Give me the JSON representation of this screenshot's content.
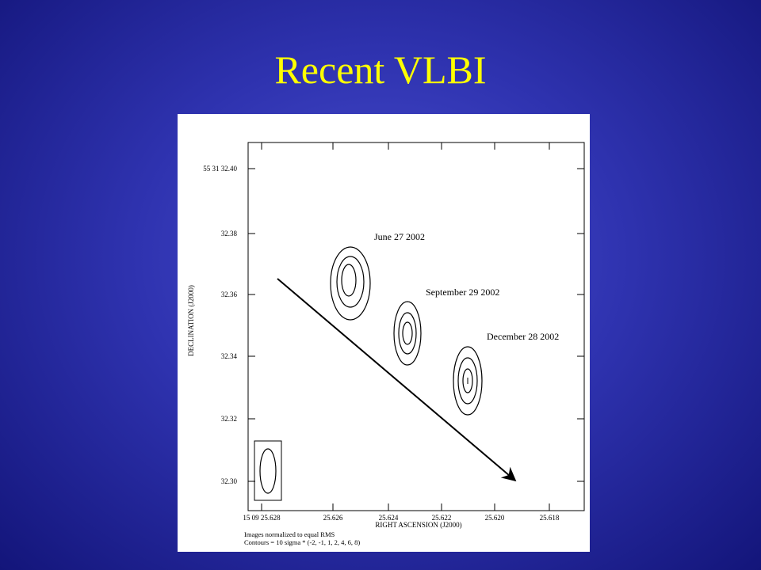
{
  "header": {
    "title": "Recent VLBI"
  },
  "figure": {
    "y_axis_label": "DECLINATION (J2000)",
    "x_axis_label": "RIGHT ASCENSION (J2000)",
    "y_tick_labels": [
      "55 31 32.40",
      "32.38",
      "32.36",
      "32.34",
      "32.32",
      "32.30"
    ],
    "x_tick_labels": [
      "15 09 25.628",
      "25.626",
      "25.624",
      "25.622",
      "25.620",
      "25.618"
    ],
    "annotations": [
      "June 27 2002",
      "September 29 2002",
      "December 28 2002"
    ],
    "notes": [
      "Images normalized to equal RMS",
      "Contours = 10 sigma * (-2, -1, 1, 2, 4, 6, 8)"
    ]
  }
}
